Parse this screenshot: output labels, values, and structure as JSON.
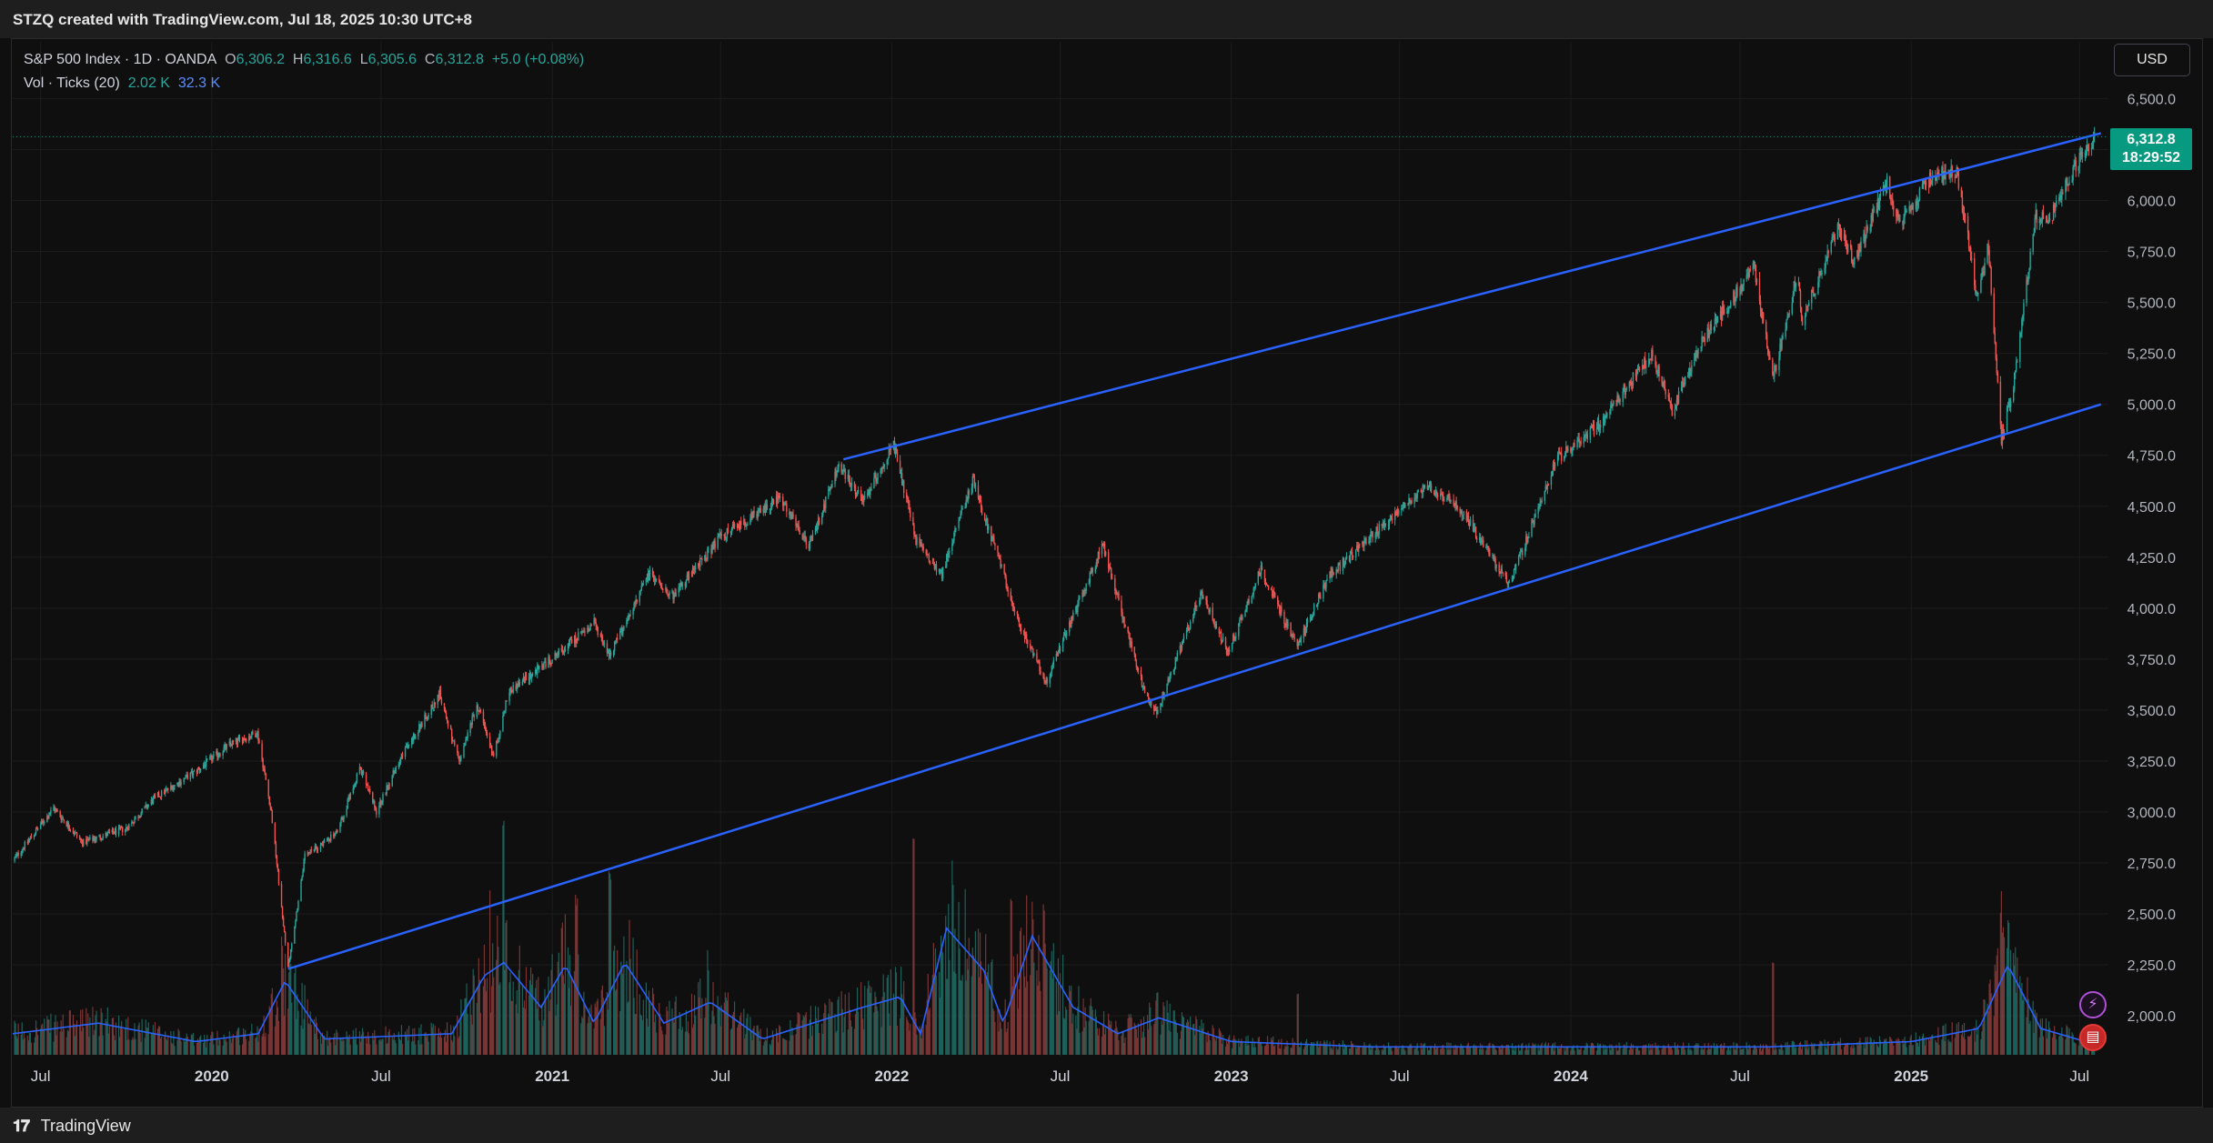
{
  "header": {
    "title": "STZQ created with TradingView.com, Jul 18, 2025 10:30 UTC+8"
  },
  "legend": {
    "symbol": "S&P 500 Index · 1D · OANDA",
    "open_label": "O",
    "open": "6,306.2",
    "high_label": "H",
    "high": "6,316.6",
    "low_label": "L",
    "low": "6,305.6",
    "close_label": "C",
    "close": "6,312.8",
    "change": "+5.0 (+0.08%)",
    "vol_label": "Vol · Ticks (20)",
    "vol_value": "2.02 K",
    "vol_ma_value": "32.3 K"
  },
  "currency": "USD",
  "price_tag": {
    "price": "6,312.8",
    "countdown": "18:29:52"
  },
  "footer": {
    "brand": "TradingView"
  },
  "icons": {
    "bolt": "lightning-icon",
    "flag": "us-flag-icon"
  },
  "colors": {
    "up": "#26a69a",
    "down": "#ef5350",
    "trendline": "#2962ff",
    "vol_ma": "#2962ff",
    "price_tag": "#089981"
  },
  "chart_data": {
    "type": "candlestick",
    "symbol": "S&P 500 Index",
    "interval": "1D",
    "x_range": [
      "2019-06-01",
      "2025-08-01"
    ],
    "ylim": [
      1800,
      6600
    ],
    "y_ticks": [
      2000,
      2250,
      2500,
      2750,
      3000,
      3250,
      3500,
      3750,
      4000,
      4250,
      4500,
      4750,
      5000,
      5250,
      5500,
      5750,
      6000,
      6250,
      6500
    ],
    "y_tick_labels": [
      "2,000.0",
      "2,250.0",
      "2,500.0",
      "2,750.0",
      "3,000.0",
      "3,250.0",
      "3,500.0",
      "3,750.0",
      "4,000.0",
      "4,250.0",
      "4,500.0",
      "4,750.0",
      "5,000.0",
      "5,250.0",
      "5,500.0",
      "5,750.0",
      "6,000.0",
      "6,250.0",
      "6,500.0"
    ],
    "x_ticks": [
      {
        "date": "2019-07-01",
        "label": "Jul"
      },
      {
        "date": "2020-01-01",
        "label": "2020"
      },
      {
        "date": "2020-07-01",
        "label": "Jul"
      },
      {
        "date": "2021-01-01",
        "label": "2021"
      },
      {
        "date": "2021-07-01",
        "label": "Jul"
      },
      {
        "date": "2022-01-01",
        "label": "2022"
      },
      {
        "date": "2022-07-01",
        "label": "Jul"
      },
      {
        "date": "2023-01-01",
        "label": "2023"
      },
      {
        "date": "2023-07-01",
        "label": "Jul"
      },
      {
        "date": "2024-01-01",
        "label": "2024"
      },
      {
        "date": "2024-07-01",
        "label": "Jul"
      },
      {
        "date": "2025-01-01",
        "label": "2025"
      },
      {
        "date": "2025-07-01",
        "label": "Jul"
      }
    ],
    "price_path": [
      [
        "2019-06-01",
        2760
      ],
      [
        "2019-07-15",
        3020
      ],
      [
        "2019-08-15",
        2850
      ],
      [
        "2019-10-01",
        2920
      ],
      [
        "2019-11-01",
        3070
      ],
      [
        "2019-12-15",
        3200
      ],
      [
        "2020-01-20",
        3330
      ],
      [
        "2020-02-19",
        3390
      ],
      [
        "2020-03-05",
        3000
      ],
      [
        "2020-03-23",
        2230
      ],
      [
        "2020-04-10",
        2780
      ],
      [
        "2020-05-15",
        2900
      ],
      [
        "2020-06-08",
        3220
      ],
      [
        "2020-06-26",
        3000
      ],
      [
        "2020-07-20",
        3250
      ],
      [
        "2020-09-02",
        3580
      ],
      [
        "2020-09-23",
        3240
      ],
      [
        "2020-10-12",
        3530
      ],
      [
        "2020-10-30",
        3270
      ],
      [
        "2020-11-15",
        3590
      ],
      [
        "2020-12-31",
        3750
      ],
      [
        "2021-02-15",
        3930
      ],
      [
        "2021-03-04",
        3770
      ],
      [
        "2021-04-15",
        4170
      ],
      [
        "2021-05-12",
        4060
      ],
      [
        "2021-07-01",
        4350
      ],
      [
        "2021-08-15",
        4480
      ],
      [
        "2021-09-02",
        4540
      ],
      [
        "2021-10-04",
        4300
      ],
      [
        "2021-11-05",
        4700
      ],
      [
        "2021-12-01",
        4520
      ],
      [
        "2022-01-03",
        4800
      ],
      [
        "2022-01-27",
        4330
      ],
      [
        "2022-02-24",
        4170
      ],
      [
        "2022-03-29",
        4630
      ],
      [
        "2022-05-20",
        3900
      ],
      [
        "2022-06-16",
        3640
      ],
      [
        "2022-08-16",
        4310
      ],
      [
        "2022-09-30",
        3580
      ],
      [
        "2022-10-13",
        3490
      ],
      [
        "2022-11-30",
        4080
      ],
      [
        "2022-12-28",
        3780
      ],
      [
        "2023-02-02",
        4190
      ],
      [
        "2023-03-13",
        3810
      ],
      [
        "2023-04-15",
        4150
      ],
      [
        "2023-06-15",
        4420
      ],
      [
        "2023-07-31",
        4600
      ],
      [
        "2023-09-01",
        4510
      ],
      [
        "2023-10-27",
        4110
      ],
      [
        "2023-12-15",
        4720
      ],
      [
        "2024-01-31",
        4900
      ],
      [
        "2024-03-28",
        5250
      ],
      [
        "2024-04-19",
        4970
      ],
      [
        "2024-05-20",
        5300
      ],
      [
        "2024-07-16",
        5670
      ],
      [
        "2024-08-05",
        5120
      ],
      [
        "2024-09-01",
        5650
      ],
      [
        "2024-09-06",
        5410
      ],
      [
        "2024-10-15",
        5870
      ],
      [
        "2024-11-01",
        5700
      ],
      [
        "2024-12-06",
        6090
      ],
      [
        "2024-12-20",
        5870
      ],
      [
        "2025-01-23",
        6120
      ],
      [
        "2025-02-19",
        6150
      ],
      [
        "2025-03-13",
        5520
      ],
      [
        "2025-03-25",
        5780
      ],
      [
        "2025-04-08",
        4830
      ],
      [
        "2025-04-21",
        5100
      ],
      [
        "2025-05-15",
        5920
      ],
      [
        "2025-06-01",
        5930
      ],
      [
        "2025-06-30",
        6200
      ],
      [
        "2025-07-17",
        6312.8
      ]
    ],
    "trendlines": [
      {
        "from": [
          "2020-03-23",
          2230
        ],
        "to": [
          "2025-07-24",
          5000
        ]
      },
      {
        "from": [
          "2021-11-10",
          4730
        ],
        "to": [
          "2025-07-24",
          6330
        ]
      }
    ],
    "last_price": 6312.8,
    "volume": {
      "indicator": "Vol · Ticks (20)",
      "last": "2.02 K",
      "ma_last": "32.3 K",
      "spikes": [
        {
          "date": "2020-03-16",
          "level": 0.45
        },
        {
          "date": "2020-10-25",
          "level": 0.65
        },
        {
          "date": "2020-11-09",
          "level": 1.0
        },
        {
          "date": "2021-01-27",
          "level": 0.65
        },
        {
          "date": "2021-03-04",
          "level": 0.75
        },
        {
          "date": "2021-06-18",
          "level": 0.4
        },
        {
          "date": "2022-01-24",
          "level": 0.85
        },
        {
          "date": "2022-03-07",
          "level": 0.75
        },
        {
          "date": "2022-05-09",
          "level": 0.7
        },
        {
          "date": "2022-06-13",
          "level": 0.65
        },
        {
          "date": "2022-10-13",
          "level": 0.25
        },
        {
          "date": "2023-03-13",
          "level": 0.25
        },
        {
          "date": "2024-08-05",
          "level": 0.4
        },
        {
          "date": "2025-03-21",
          "level": 0.25
        },
        {
          "date": "2025-04-07",
          "level": 0.65
        },
        {
          "date": "2025-04-09",
          "level": 0.55
        }
      ],
      "ma_path": [
        [
          "2019-06-01",
          0.08
        ],
        [
          "2019-09-01",
          0.12
        ],
        [
          "2019-12-15",
          0.05
        ],
        [
          "2020-02-20",
          0.08
        ],
        [
          "2020-03-20",
          0.28
        ],
        [
          "2020-05-01",
          0.06
        ],
        [
          "2020-09-15",
          0.08
        ],
        [
          "2020-10-20",
          0.3
        ],
        [
          "2020-11-10",
          0.35
        ],
        [
          "2020-12-20",
          0.18
        ],
        [
          "2021-01-15",
          0.34
        ],
        [
          "2021-02-15",
          0.12
        ],
        [
          "2021-03-20",
          0.35
        ],
        [
          "2021-05-01",
          0.12
        ],
        [
          "2021-06-20",
          0.2
        ],
        [
          "2021-08-15",
          0.06
        ],
        [
          "2021-12-01",
          0.18
        ],
        [
          "2022-01-10",
          0.22
        ],
        [
          "2022-02-01",
          0.08
        ],
        [
          "2022-03-01",
          0.48
        ],
        [
          "2022-04-10",
          0.32
        ],
        [
          "2022-05-01",
          0.12
        ],
        [
          "2022-06-01",
          0.45
        ],
        [
          "2022-07-15",
          0.18
        ],
        [
          "2022-09-01",
          0.08
        ],
        [
          "2022-10-15",
          0.14
        ],
        [
          "2023-01-01",
          0.05
        ],
        [
          "2023-06-01",
          0.03
        ],
        [
          "2024-01-01",
          0.03
        ],
        [
          "2024-08-01",
          0.03
        ],
        [
          "2025-01-01",
          0.05
        ],
        [
          "2025-03-15",
          0.1
        ],
        [
          "2025-04-15",
          0.34
        ],
        [
          "2025-05-20",
          0.1
        ],
        [
          "2025-07-17",
          0.04
        ]
      ]
    }
  }
}
